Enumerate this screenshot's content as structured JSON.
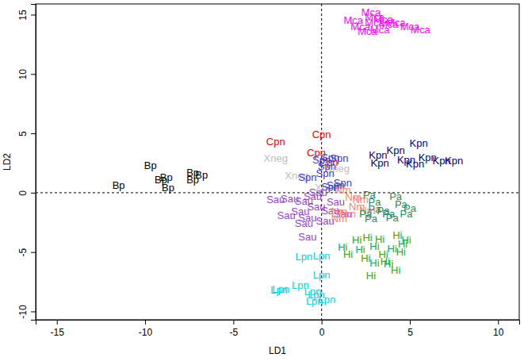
{
  "chart_data": {
    "type": "scatter",
    "x_label": "LD1",
    "y_label": "LD2",
    "xlim": [
      -16.2,
      11.2
    ],
    "ylim": [
      -10.7,
      15.9
    ],
    "xticks": [
      -15,
      -10,
      -5,
      0,
      5,
      10
    ],
    "yticks": [
      -10,
      -5,
      0,
      5,
      10,
      15
    ],
    "marker": "text",
    "reference_lines": {
      "x": [
        0
      ],
      "y": [
        0
      ]
    },
    "series": [
      {
        "name": "Bp",
        "color": "#000000",
        "x": [
          -11.5,
          -9.7,
          -9.1,
          -8.7,
          -8.8,
          -7.3,
          -7.3,
          -6.8
        ],
        "y": [
          0.6,
          2.3,
          1.1,
          0.4,
          1.3,
          1.7,
          1.1,
          1.5
        ]
      },
      {
        "name": "Xneg",
        "color": "#bebebe",
        "x": [
          -2.6,
          -1.4,
          0.3,
          0.9
        ],
        "y": [
          2.9,
          1.4,
          0.4,
          2.0
        ]
      },
      {
        "name": "Cpn",
        "color": "#ee0000",
        "x": [
          -2.6,
          0.0,
          -0.3,
          0.4
        ],
        "y": [
          4.3,
          4.9,
          3.4,
          2.6
        ]
      },
      {
        "name": "Spn",
        "color": "#3a3acd",
        "x": [
          0.0,
          0.5,
          1.0,
          0.3,
          -0.8,
          0.2,
          0.8,
          1.2,
          0.5
        ],
        "y": [
          2.8,
          3.0,
          2.9,
          2.2,
          1.3,
          1.6,
          0.6,
          0.8,
          0.5
        ]
      },
      {
        "name": "Sau",
        "color": "#9a3fd0",
        "x": [
          -2.6,
          -1.8,
          -1.0,
          -0.3,
          0.5,
          -1.2,
          -2.0,
          -0.8,
          0.2,
          -1.0,
          -0.8,
          -0.2,
          0.8,
          1.2,
          -0.5
        ],
        "y": [
          -0.6,
          -0.5,
          -0.7,
          -1.2,
          -1.5,
          -1.6,
          -1.9,
          -2.1,
          -2.4,
          -2.6,
          -3.7,
          0.0,
          -0.8,
          -1.8,
          -0.3
        ]
      },
      {
        "name": "Nm",
        "color": "#fa8072",
        "x": [
          1.2,
          1.8,
          2.2,
          1.0,
          1.5,
          1.0,
          2.0,
          2.6
        ],
        "y": [
          0.2,
          -0.4,
          -0.6,
          -1.6,
          -1.8,
          -2.2,
          -1.2,
          -1.5
        ]
      },
      {
        "name": "Pa",
        "color": "#2e8b57",
        "x": [
          2.7,
          4.2,
          3.0,
          4.5,
          3.5,
          5.0,
          2.5,
          4.0,
          3.0,
          4.8,
          3.8,
          2.8
        ],
        "y": [
          -0.2,
          -0.3,
          -0.8,
          -1.0,
          -1.5,
          -1.3,
          -1.8,
          -2.1,
          -1.4,
          -1.8,
          -1.8,
          -2.2
        ]
      },
      {
        "name": "Kpn",
        "color": "#00008b",
        "x": [
          3.2,
          4.2,
          5.5,
          6.0,
          4.8,
          6.8,
          3.3,
          5.3,
          7.5
        ],
        "y": [
          3.2,
          3.6,
          4.2,
          3.0,
          2.8,
          2.7,
          2.5,
          2.4,
          2.7
        ]
      },
      {
        "name": "Hi",
        "color": "#22aa22",
        "x": [
          2.0,
          2.6,
          3.3,
          4.3,
          4.8,
          1.2,
          2.2,
          3.0,
          4.0,
          1.5,
          2.5,
          3.5,
          4.5,
          3.0,
          3.8,
          2.8,
          4.2,
          4.6,
          3.6
        ],
        "y": [
          -4.0,
          -3.8,
          -3.9,
          -3.6,
          -4.0,
          -4.6,
          -4.8,
          -4.5,
          -4.7,
          -5.2,
          -5.5,
          -5.2,
          -5.0,
          -5.9,
          -6.0,
          -7.0,
          -6.5,
          -4.3,
          -5.8
        ]
      },
      {
        "name": "Lpn",
        "color": "#00d0e0",
        "x": [
          -1.0,
          0.0,
          0.0,
          -2.3,
          -1.2,
          -0.5,
          -0.4,
          0.3,
          -2.4,
          -0.3
        ],
        "y": [
          -5.4,
          -5.3,
          -6.9,
          -8.1,
          -7.8,
          -8.3,
          -9.1,
          -9.0,
          -8.2,
          -8.6
        ]
      },
      {
        "name": "Mca",
        "color": "#ff00ff",
        "x": [
          2.8,
          1.8,
          3.0,
          2.2,
          3.5,
          3.8,
          2.6,
          3.3,
          4.2,
          5.0,
          5.6,
          3.0
        ],
        "y": [
          15.2,
          14.5,
          14.8,
          14.0,
          14.6,
          14.2,
          13.6,
          13.7,
          14.3,
          14.0,
          13.7,
          14.3
        ]
      }
    ]
  }
}
